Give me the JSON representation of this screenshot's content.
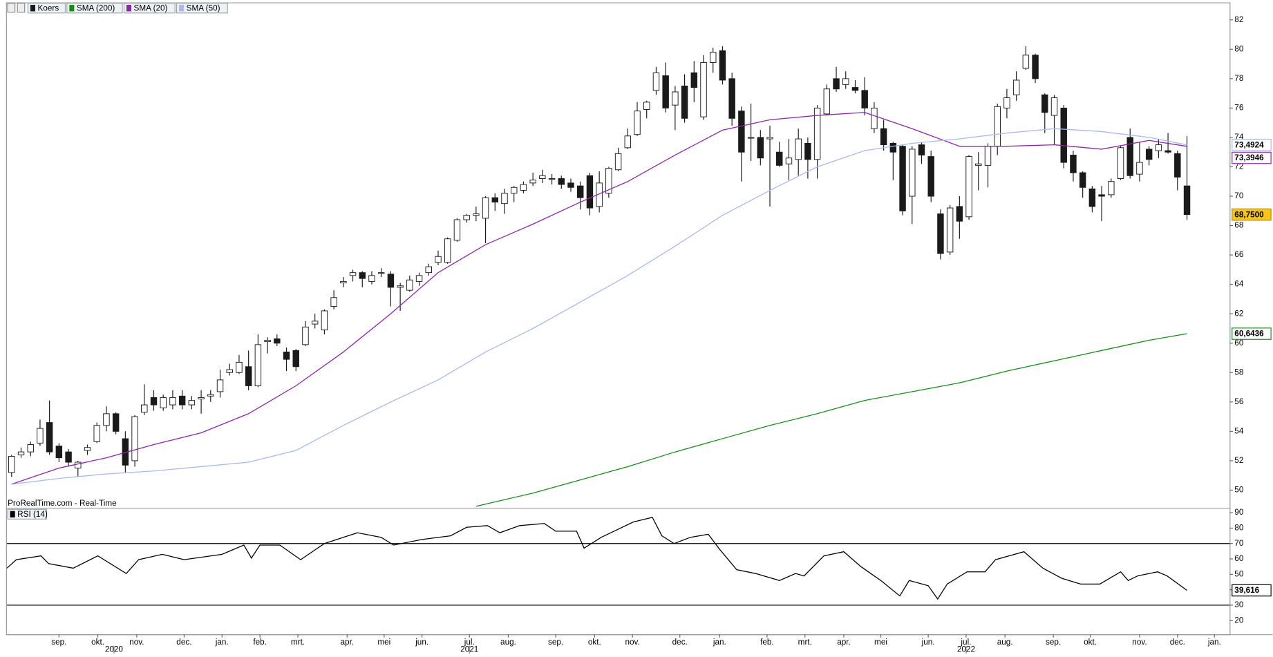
{
  "chart_data": [
    {
      "type": "candlestick",
      "name": "Koers",
      "source": "ProRealTime.com - Real-Time",
      "up_color": "#ffffff",
      "down_color": "#1a1a1a",
      "close_label": "68,7500",
      "open": [
        51.2,
        52.4,
        52.6,
        53.2,
        54.6,
        53.0,
        52.6,
        51.5,
        52.7,
        53.3,
        54.4,
        55.2,
        53.5,
        52.0,
        55.3,
        56.3,
        55.6,
        55.8,
        56.4,
        55.8,
        56.2,
        56.4,
        56.7,
        58.0,
        58.0,
        58.4,
        57.1,
        60.1,
        60.3,
        59.4,
        59.5,
        59.9,
        61.3,
        60.9,
        62.5,
        64.1,
        64.6,
        64.8,
        64.2,
        64.8,
        64.7,
        63.8,
        63.6,
        64.2,
        64.8,
        65.5,
        65.5,
        67.0,
        68.4,
        68.7,
        68.5,
        69.9,
        69.5,
        70.2,
        70.4,
        70.9,
        71.2,
        71.2,
        71.2,
        70.9,
        70.7,
        71.4,
        69.3,
        70.2,
        71.8,
        73.3,
        74.2,
        75.9,
        77.2,
        78.2,
        76.2,
        77.5,
        78.4,
        75.4,
        79.1,
        79.9,
        78.0,
        75.8,
        74.0,
        74.0,
        73.9,
        73.0,
        72.2,
        72.5,
        73.6,
        72.5,
        75.6,
        78.0,
        77.6,
        77.4,
        77.2,
        74.6,
        74.6,
        73.6,
        73.4,
        70.0,
        73.5,
        72.7,
        68.8,
        66.2,
        69.3,
        68.6,
        72.1,
        72.1,
        73.4,
        76.0,
        76.9,
        78.7,
        79.6,
        76.9,
        75.5,
        76.0,
        72.8,
        71.6,
        70.5,
        70.1,
        70.1,
        71.2,
        74.0,
        71.5,
        73.2,
        73.1,
        73.1,
        72.9,
        70.7
      ],
      "high": [
        52.4,
        52.9,
        53.3,
        54.8,
        56.1,
        53.2,
        52.8,
        52.0,
        53.1,
        54.6,
        55.7,
        55.3,
        54.0,
        55.1,
        57.2,
        56.8,
        56.5,
        56.8,
        56.8,
        56.4,
        56.8,
        56.8,
        58.2,
        58.6,
        59.2,
        59.5,
        60.6,
        60.4,
        60.6,
        59.7,
        59.6,
        61.5,
        62.0,
        62.3,
        63.6,
        64.5,
        65.0,
        64.9,
        64.9,
        65.1,
        64.9,
        64.1,
        64.6,
        64.8,
        65.4,
        66.3,
        67.2,
        68.5,
        68.8,
        69.3,
        70.0,
        70.2,
        70.5,
        70.7,
        71.0,
        71.6,
        71.8,
        71.5,
        71.4,
        71.2,
        71.0,
        71.6,
        71.7,
        72.0,
        73.3,
        74.6,
        76.4,
        76.5,
        78.8,
        79.1,
        77.5,
        78.3,
        79.2,
        79.6,
        80.1,
        80.2,
        78.4,
        76.1,
        76.3,
        74.5,
        74.8,
        73.7,
        73.9,
        74.6,
        74.0,
        76.2,
        77.6,
        78.8,
        78.5,
        77.9,
        78.1,
        76.4,
        75.2,
        73.7,
        73.5,
        73.4,
        73.7,
        73.1,
        69.1,
        69.4,
        70.0,
        72.8,
        73.0,
        73.6,
        76.3,
        77.3,
        78.5,
        80.2,
        79.7,
        77.0,
        76.9,
        76.2,
        73.1,
        71.7,
        70.7,
        70.7,
        71.2,
        73.4,
        74.6,
        73.7,
        73.4,
        73.9,
        74.3,
        73.1,
        74.1
      ],
      "low": [
        50.9,
        52.2,
        52.3,
        53.0,
        52.4,
        51.9,
        51.6,
        50.9,
        52.4,
        53.2,
        54.0,
        53.8,
        51.2,
        51.6,
        55.1,
        55.4,
        55.4,
        55.5,
        55.5,
        55.5,
        55.2,
        56.0,
        56.3,
        57.8,
        57.9,
        56.8,
        57.0,
        59.3,
        59.8,
        58.1,
        58.1,
        59.8,
        61.0,
        60.6,
        62.3,
        63.8,
        64.2,
        63.8,
        64.0,
        64.5,
        62.5,
        62.2,
        63.5,
        63.9,
        64.6,
        65.3,
        65.4,
        66.9,
        68.2,
        68.3,
        66.8,
        69.0,
        68.8,
        69.6,
        70.2,
        70.7,
        70.9,
        70.8,
        70.5,
        70.3,
        69.1,
        68.7,
        68.9,
        69.9,
        71.7,
        73.2,
        74.1,
        75.3,
        76.9,
        75.7,
        74.5,
        75.0,
        76.4,
        75.2,
        78.4,
        77.6,
        74.8,
        71.0,
        72.4,
        72.1,
        69.3,
        72.0,
        71.1,
        71.4,
        71.2,
        71.2,
        75.5,
        77.1,
        77.3,
        77.0,
        75.5,
        74.3,
        73.1,
        71.1,
        68.7,
        68.1,
        72.2,
        69.6,
        65.7,
        66.0,
        67.1,
        68.4,
        70.4,
        70.6,
        72.8,
        75.3,
        76.5,
        78.6,
        77.7,
        74.3,
        73.5,
        71.9,
        71.0,
        69.9,
        68.9,
        68.3,
        69.9,
        71.1,
        71.2,
        71.0,
        72.1,
        72.6,
        72.9,
        70.4,
        68.4
      ],
      "close": [
        52.3,
        52.6,
        53.1,
        54.2,
        52.6,
        52.2,
        51.9,
        51.9,
        52.9,
        54.4,
        55.2,
        54.0,
        51.7,
        55.0,
        55.8,
        55.8,
        56.3,
        56.3,
        55.8,
        56.1,
        56.3,
        56.5,
        57.5,
        58.2,
        58.7,
        57.1,
        59.9,
        60.2,
        60.0,
        58.9,
        58.4,
        61.1,
        61.5,
        62.2,
        63.1,
        64.2,
        64.8,
        64.4,
        64.6,
        64.8,
        63.8,
        63.9,
        64.3,
        64.6,
        65.2,
        65.9,
        67.1,
        68.4,
        68.7,
        68.8,
        69.9,
        69.6,
        70.2,
        70.6,
        70.8,
        71.1,
        71.4,
        71.2,
        70.8,
        70.6,
        69.9,
        69.2,
        70.9,
        71.9,
        72.9,
        74.1,
        75.8,
        76.4,
        78.4,
        76.0,
        77.1,
        75.3,
        77.4,
        79.1,
        79.8,
        77.9,
        75.3,
        73.0,
        74.0,
        72.6,
        74.0,
        72.1,
        72.6,
        73.9,
        72.5,
        76.0,
        77.3,
        77.3,
        78.0,
        77.2,
        76.0,
        76.0,
        73.5,
        73.0,
        69.0,
        73.2,
        72.8,
        70.0,
        66.1,
        69.2,
        68.3,
        72.7,
        72.2,
        73.4,
        76.1,
        76.7,
        77.9,
        79.6,
        78.0,
        75.7,
        76.7,
        72.3,
        71.6,
        70.6,
        69.3,
        70.0,
        71.0,
        73.3,
        71.4,
        72.3,
        72.5,
        73.5,
        73.0,
        71.3,
        68.75
      ],
      "series": [
        {
          "name": "SMA (200)",
          "color": "#1a8a1a",
          "last_label": "60,6436",
          "x": [
            49,
            55,
            60,
            65,
            70,
            75,
            80,
            85,
            90,
            95,
            100,
            105,
            110,
            115,
            120,
            124
          ],
          "values": [
            48.9,
            49.8,
            50.7,
            51.6,
            52.6,
            53.5,
            54.4,
            55.2,
            56.1,
            56.7,
            57.3,
            58.1,
            58.8,
            59.5,
            60.2,
            60.6436
          ]
        },
        {
          "name": "SMA (20)",
          "color": "#8e24aa",
          "last_label": "73,3946",
          "x": [
            0,
            5,
            10,
            15,
            20,
            25,
            30,
            35,
            40,
            45,
            50,
            55,
            60,
            65,
            70,
            75,
            80,
            85,
            90,
            95,
            100,
            105,
            110,
            115,
            120,
            124
          ],
          "values": [
            50.4,
            51.5,
            52.2,
            53.1,
            53.9,
            55.2,
            57.1,
            59.4,
            62.0,
            64.8,
            66.7,
            68.1,
            69.6,
            71.0,
            72.8,
            74.5,
            75.2,
            75.5,
            75.7,
            74.6,
            73.4,
            73.4,
            73.5,
            73.2,
            73.8,
            73.3946
          ]
        },
        {
          "name": "SMA (50)",
          "color": "#aab8ee",
          "last_label": "73,4924",
          "x": [
            0,
            5,
            10,
            15,
            20,
            25,
            30,
            35,
            40,
            45,
            50,
            55,
            60,
            65,
            70,
            75,
            80,
            85,
            90,
            95,
            100,
            105,
            110,
            115,
            120,
            124
          ],
          "values": [
            50.4,
            50.8,
            51.1,
            51.3,
            51.6,
            51.9,
            52.7,
            54.4,
            56.0,
            57.5,
            59.4,
            61.0,
            62.8,
            64.6,
            66.6,
            68.7,
            70.4,
            72.0,
            73.1,
            73.6,
            73.9,
            74.3,
            74.6,
            74.4,
            74.0,
            73.4924
          ]
        }
      ],
      "xlim": [
        -0.5,
        128.5
      ],
      "ylim": [
        48.8,
        82.8
      ],
      "yticks": [
        50,
        52,
        54,
        56,
        58,
        60,
        62,
        64,
        66,
        68,
        70,
        72,
        74,
        76,
        78,
        80,
        82
      ],
      "xticks": [
        {
          "value": 5,
          "label": "sep."
        },
        {
          "value": 9.1,
          "label": "okt."
        },
        {
          "value": 13.2,
          "label": "nov."
        },
        {
          "value": 18.2,
          "label": "dec."
        },
        {
          "value": 22.2,
          "label": "jan."
        },
        {
          "value": 26.2,
          "label": "feb."
        },
        {
          "value": 30.2,
          "label": "mrt."
        },
        {
          "value": 35.4,
          "label": "apr."
        },
        {
          "value": 39.3,
          "label": "mei"
        },
        {
          "value": 43.3,
          "label": "jun."
        },
        {
          "value": 48.3,
          "label": "jul."
        },
        {
          "value": 52.4,
          "label": "aug."
        },
        {
          "value": 57.4,
          "label": "sep."
        },
        {
          "value": 61.5,
          "label": "okt."
        },
        {
          "value": 65.5,
          "label": "nov."
        },
        {
          "value": 70.5,
          "label": "dec."
        },
        {
          "value": 74.7,
          "label": "jan."
        },
        {
          "value": 79.7,
          "label": "feb."
        },
        {
          "value": 83.7,
          "label": "mrt."
        },
        {
          "value": 87.8,
          "label": "apr."
        },
        {
          "value": 91.7,
          "label": "mei"
        },
        {
          "value": 96.7,
          "label": "jun."
        },
        {
          "value": 100.7,
          "label": "jul."
        },
        {
          "value": 104.8,
          "label": "aug."
        },
        {
          "value": 109.9,
          "label": "sep."
        },
        {
          "value": 113.8,
          "label": "okt."
        },
        {
          "value": 119,
          "label": "nov."
        },
        {
          "value": 123,
          "label": "dec."
        },
        {
          "value": 126.9,
          "label": "jan."
        }
      ],
      "year_ticks": [
        {
          "value": 10.8,
          "label": "2020"
        },
        {
          "value": 48.3,
          "label": "2021"
        },
        {
          "value": 100.7,
          "label": "2022"
        }
      ]
    },
    {
      "type": "line",
      "xlim": [
        -0.5,
        128.5
      ],
      "ylim": [
        11.1,
        93.2
      ],
      "yticks": [
        20,
        30,
        40,
        50,
        60,
        70,
        80,
        90
      ],
      "hlines": [
        70,
        30
      ],
      "series": [
        {
          "name": "RSI (14)",
          "color": "#000000",
          "last_label": "39,616",
          "x": [
            -0.5,
            0.5,
            3.1,
            3.9,
            6.5,
            9.1,
            12.1,
            13.4,
            15.9,
            18.2,
            22.2,
            24.5,
            25.3,
            26.2,
            28.3,
            30.5,
            33,
            36.5,
            39,
            40.3,
            43.3,
            46.3,
            48,
            50.2,
            51.5,
            53.6,
            56.2,
            57.4,
            59.6,
            60.4,
            62.2,
            65.6,
            67.6,
            68.6,
            69.9,
            71.6,
            73.5,
            74.6,
            76.5,
            78.5,
            81,
            82.7,
            83.6,
            85.7,
            87.8,
            89.6,
            91.7,
            93.7,
            94.7,
            96.7,
            97.7,
            98.7,
            100.8,
            102.7,
            103.8,
            106.8,
            108.8,
            110.8,
            112.8,
            114.8,
            117,
            117.8,
            118.8,
            120.9,
            121.9,
            124
          ],
          "values": [
            54,
            59.5,
            62,
            57,
            54,
            62,
            50.5,
            59.5,
            63,
            59.5,
            63,
            69,
            60.5,
            69,
            69,
            59.5,
            70,
            77,
            74,
            69,
            72.6,
            75,
            80.5,
            81.6,
            77,
            81.6,
            83,
            78,
            78,
            67,
            74,
            84,
            87,
            75,
            70,
            74,
            76,
            67,
            53,
            50.5,
            46,
            50.5,
            49,
            62,
            64.7,
            55,
            46,
            36,
            46,
            42.6,
            34,
            43.7,
            51.6,
            51.6,
            59.5,
            64.7,
            54,
            47.4,
            43.7,
            43.7,
            51.6,
            46,
            49,
            51.6,
            49,
            39.616
          ]
        }
      ]
    }
  ]
}
